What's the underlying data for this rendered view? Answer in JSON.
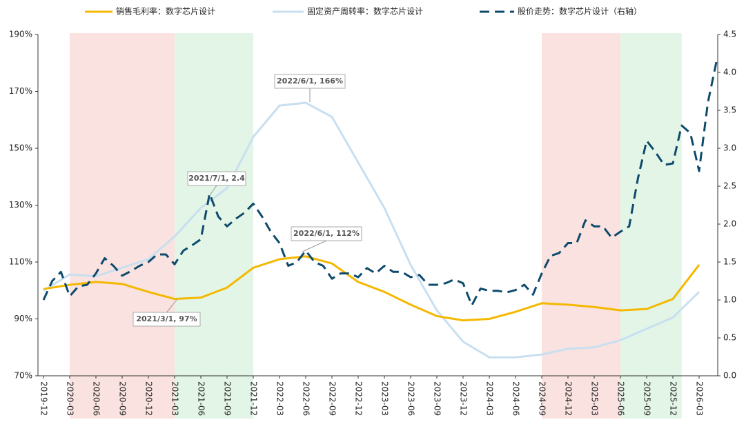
{
  "chart_data": {
    "type": "line",
    "legend": "top",
    "categories": [
      "2019-12",
      "2020-03",
      "2020-06",
      "2020-09",
      "2020-12",
      "2021-03",
      "2021-06",
      "2021-09",
      "2021-12",
      "2022-03",
      "2022-06",
      "2022-09",
      "2022-12",
      "2023-03",
      "2023-06",
      "2023-09",
      "2023-12",
      "2024-03",
      "2024-06",
      "2024-09",
      "2024-12",
      "2025-03",
      "2025-06",
      "2025-09",
      "2025-12",
      "2026-03"
    ],
    "ylim": [
      70,
      190
    ],
    "yticks": [
      {
        "value": 70,
        "label": "70%"
      },
      {
        "value": 90,
        "label": "90%"
      },
      {
        "value": 110,
        "label": "110%"
      },
      {
        "value": 130,
        "label": "130%"
      },
      {
        "value": 150,
        "label": "150%"
      },
      {
        "value": 170,
        "label": "170%"
      },
      {
        "value": 190,
        "label": "190%"
      }
    ],
    "y2lim": [
      0,
      4.5
    ],
    "y2ticks": [
      {
        "value": 0,
        "label": "0.0"
      },
      {
        "value": 0.5,
        "label": "0.5"
      },
      {
        "value": 1,
        "label": "1.0"
      },
      {
        "value": 1.5,
        "label": "1.5"
      },
      {
        "value": 2,
        "label": "2.0"
      },
      {
        "value": 2.5,
        "label": "2.5"
      },
      {
        "value": 3,
        "label": "3.0"
      },
      {
        "value": 3.5,
        "label": "3.5"
      },
      {
        "value": 4,
        "label": "4.0"
      },
      {
        "value": 4.5,
        "label": "4.5"
      }
    ],
    "series": [
      {
        "name": "销售毛利率：数字芯片设计",
        "color": "#f5b800",
        "values": [
          100.5,
          102,
          103,
          102.3,
          99.5,
          97,
          97.5,
          101,
          108,
          111,
          112,
          109.5,
          103,
          99.5,
          95,
          91,
          89.5,
          90,
          92.5,
          95.5,
          95,
          94.2,
          93,
          93.5,
          97,
          109
        ]
      },
      {
        "name": "固定资产周转率：数字芯片设计",
        "color": "#c8dff0",
        "values": [
          100,
          105.6,
          105,
          108,
          111,
          119,
          129,
          136,
          154,
          165,
          166,
          161,
          145,
          129,
          109,
          93,
          82,
          76.5,
          76.5,
          77.5,
          79.5,
          80,
          82.5,
          86.5,
          90.5,
          99.5
        ]
      },
      {
        "name": "股价走势：数字芯片设计（右轴）",
        "color": "#0d4a6b",
        "axis": "y2",
        "dashed": true,
        "x": [
          "2019-12",
          "2020-01",
          "2020-02",
          "2020-03",
          "2020-04",
          "2020-05",
          "2020-06",
          "2020-07",
          "2020-08",
          "2020-09",
          "2020-10",
          "2020-11",
          "2020-12",
          "2021-01",
          "2021-02",
          "2021-03",
          "2021-04",
          "2021-05",
          "2021-06",
          "2021-07",
          "2021-08",
          "2021-09",
          "2021-10",
          "2021-11",
          "2021-12",
          "2022-01",
          "2022-02",
          "2022-03",
          "2022-04",
          "2022-05",
          "2022-06",
          "2022-07",
          "2022-08",
          "2022-09",
          "2022-10",
          "2022-11",
          "2022-12",
          "2023-01",
          "2023-02",
          "2023-03",
          "2023-04",
          "2023-05",
          "2023-06",
          "2023-07",
          "2023-08",
          "2023-09",
          "2023-10",
          "2023-11",
          "2023-12",
          "2024-01",
          "2024-02",
          "2024-03",
          "2024-04",
          "2024-05",
          "2024-06",
          "2024-07",
          "2024-08",
          "2024-09",
          "2024-10",
          "2024-11",
          "2024-12",
          "2025-01",
          "2025-02",
          "2025-03",
          "2025-04",
          "2025-05",
          "2025-06",
          "2025-07",
          "2025-08",
          "2025-09",
          "2025-10",
          "2025-11",
          "2025-12",
          "2026-01",
          "2026-02",
          "2026-03",
          "2026-04",
          "2026-05"
        ],
        "values": [
          1.0,
          1.25,
          1.37,
          1.05,
          1.18,
          1.2,
          1.35,
          1.55,
          1.45,
          1.32,
          1.38,
          1.45,
          1.5,
          1.6,
          1.6,
          1.47,
          1.65,
          1.72,
          1.8,
          2.4,
          2.1,
          1.97,
          2.07,
          2.15,
          2.27,
          2.1,
          1.9,
          1.75,
          1.45,
          1.5,
          1.65,
          1.5,
          1.45,
          1.28,
          1.35,
          1.35,
          1.3,
          1.42,
          1.35,
          1.45,
          1.37,
          1.37,
          1.3,
          1.33,
          1.2,
          1.2,
          1.22,
          1.27,
          1.22,
          0.93,
          1.15,
          1.12,
          1.12,
          1.1,
          1.13,
          1.2,
          1.07,
          1.35,
          1.58,
          1.62,
          1.75,
          1.75,
          2.05,
          1.97,
          1.97,
          1.82,
          1.9,
          1.97,
          2.6,
          3.1,
          2.95,
          2.78,
          2.8,
          3.3,
          3.2,
          2.7,
          3.6,
          4.15
        ]
      }
    ],
    "shaded_regions": [
      {
        "start": "2020-03",
        "end": "2021-03",
        "color": "#f9e2e0"
      },
      {
        "start": "2021-03",
        "end": "2021-12",
        "color": "#e3f5e6"
      },
      {
        "start": "2024-09",
        "end": "2025-06",
        "color": "#f9e2e0"
      },
      {
        "start": "2025-06",
        "end": "2026-01",
        "color": "#e3f5e6"
      }
    ],
    "annotations": [
      "2022/6/1, 166%",
      "2021/7/1, 2.4",
      "2022/6/1, 112%",
      "2021/3/1, 97%"
    ]
  }
}
